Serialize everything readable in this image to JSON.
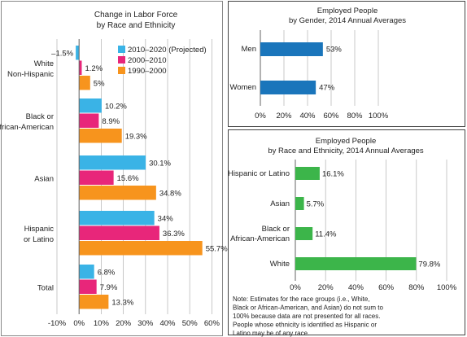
{
  "chart_data": [
    {
      "type": "bar",
      "orientation": "horizontal",
      "title": "Change in Labor Force\nby Race and Ethnicity",
      "categories": [
        "White\nNon-Hispanic",
        "Black or\nAfrican-American",
        "Asian",
        "Hispanic\nor Latino",
        "Total"
      ],
      "series": [
        {
          "name": "2010–2020 (Projected)",
          "color": "#3ab3e6",
          "values": [
            -1.5,
            10.2,
            30.1,
            34,
            6.8
          ],
          "labels": [
            "–1.5%",
            "10.2%",
            "30.1%",
            "34%",
            "6.8%"
          ]
        },
        {
          "name": "2000–2010",
          "color": "#e8267a",
          "values": [
            1.2,
            8.9,
            15.6,
            36.3,
            7.9
          ],
          "labels": [
            "1.2%",
            "8.9%",
            "15.6%",
            "36.3%",
            "7.9%"
          ]
        },
        {
          "name": "1990–2000",
          "color": "#f7941d",
          "values": [
            5,
            19.3,
            34.8,
            55.7,
            13.3
          ],
          "labels": [
            "5%",
            "19.3%",
            "34.8%",
            "55.7%",
            "13.3%"
          ]
        }
      ],
      "xlim": [
        -10,
        60
      ],
      "xticks": [
        "-10%",
        "0%",
        "10%",
        "20%",
        "30%",
        "40%",
        "50%",
        "60%"
      ],
      "grid": true,
      "legend": "top-right"
    },
    {
      "type": "bar",
      "orientation": "horizontal",
      "title": "Employed People\nby Gender, 2014 Annual Averages",
      "categories": [
        "Men",
        "Women"
      ],
      "series": [
        {
          "color": "#1a75bb",
          "values": [
            53,
            47
          ],
          "labels": [
            "53%",
            "47%"
          ]
        }
      ],
      "xlim": [
        0,
        100
      ],
      "xticks": [
        "0%",
        "20%",
        "40%",
        "60%",
        "80%",
        "100%"
      ],
      "grid": true
    },
    {
      "type": "bar",
      "orientation": "horizontal",
      "title": "Employed People\nby Race and Ethnicity, 2014 Annual Averages",
      "categories": [
        "Hispanic or Latino",
        "Asian",
        "Black or\nAfrican-American",
        "White"
      ],
      "series": [
        {
          "color": "#3cb54a",
          "values": [
            16.1,
            5.7,
            11.4,
            79.8
          ],
          "labels": [
            "16.1%",
            "5.7%",
            "11.4%",
            "79.8%"
          ]
        }
      ],
      "xlim": [
        0,
        100
      ],
      "xticks": [
        "0%",
        "20%",
        "40%",
        "60%",
        "80%",
        "100%"
      ],
      "grid": true,
      "note": "Note: Estimates for the race groups (i.e., White,\nBlack or African-American, and Asian) do not sum to\n100% because data are not presented for all races.\nPeople whose ethnicity is identified as Hispanic or\nLatino may be of any race."
    }
  ]
}
